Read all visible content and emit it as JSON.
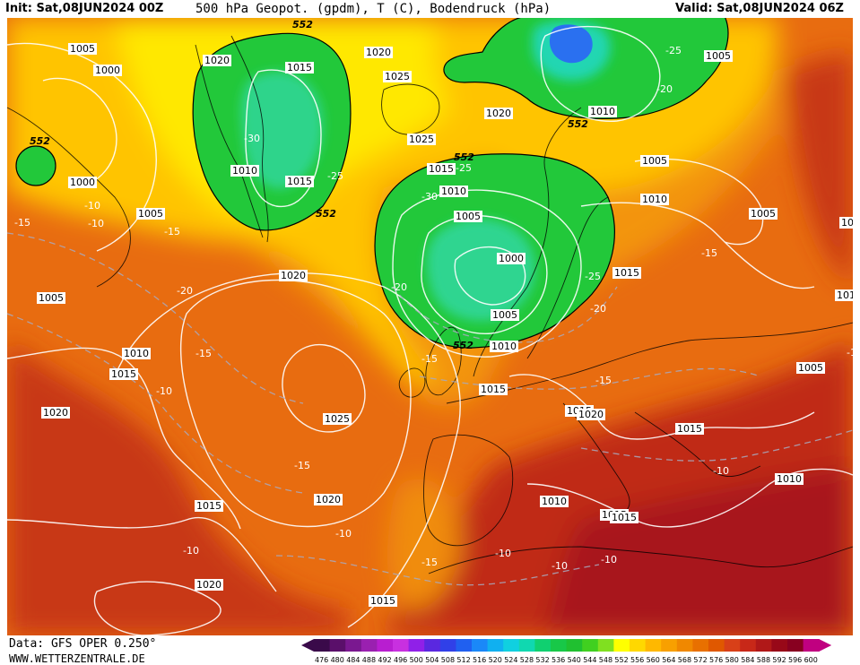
{
  "header": {
    "init": "Init: Sat,08JUN2024 00Z",
    "title": "500 hPa Geopot. (gpdm), T (C), Bodendruck (hPa)",
    "valid": "Valid: Sat,08JUN2024 06Z"
  },
  "footer": {
    "source": "Data: GFS OPER 0.250°",
    "website": "WWW.WETTERZENTRALE.DE"
  },
  "colorbar": {
    "ticks": [
      "476",
      "480",
      "484",
      "488",
      "492",
      "496",
      "500",
      "504",
      "508",
      "512",
      "516",
      "520",
      "524",
      "528",
      "532",
      "536",
      "540",
      "544",
      "548",
      "552",
      "556",
      "560",
      "564",
      "568",
      "572",
      "576",
      "580",
      "584",
      "588",
      "592",
      "596",
      "600"
    ],
    "colors": [
      "#3a0a4a",
      "#5a0f6a",
      "#7a1890",
      "#9a20b0",
      "#b81ed0",
      "#c830e0",
      "#9020e8",
      "#5a28e0",
      "#3040e8",
      "#2060f0",
      "#1a88f8",
      "#10b0f0",
      "#10d0e0",
      "#10d8b0",
      "#10d070",
      "#18c848",
      "#20c030",
      "#40d020",
      "#80e020",
      "#ffff00",
      "#ffd800",
      "#ffb800",
      "#f8a000",
      "#f08800",
      "#e87000",
      "#e05800",
      "#d84018",
      "#c82818",
      "#b01818",
      "#980818",
      "#880020",
      "#c00080"
    ]
  },
  "map": {
    "colors": {
      "red": "#c83818",
      "orange": "#e86c10",
      "lightorange": "#f39410",
      "yellow": "#ffc400",
      "paleyellow": "#ffe800",
      "green": "#22c83a",
      "cyan": "#20d8a8",
      "blue": "#2a70f0"
    },
    "isobars": [
      {
        "t": "1005"
      },
      {
        "t": "1000"
      },
      {
        "t": "1020"
      },
      {
        "t": "1015"
      },
      {
        "t": "1020"
      },
      {
        "t": "1025"
      },
      {
        "t": "1020"
      },
      {
        "t": "1025"
      },
      {
        "t": "1010"
      },
      {
        "t": "1015"
      },
      {
        "t": "1000"
      },
      {
        "t": "1005"
      },
      {
        "t": "1005"
      },
      {
        "t": "1015"
      },
      {
        "t": "1010"
      },
      {
        "t": "1005"
      },
      {
        "t": "1000"
      },
      {
        "t": "1005"
      },
      {
        "t": "1010"
      },
      {
        "t": "1020"
      },
      {
        "t": "1010"
      },
      {
        "t": "1015"
      },
      {
        "t": "1015"
      },
      {
        "t": "1025"
      },
      {
        "t": "1005"
      },
      {
        "t": "1010"
      },
      {
        "t": "1005"
      },
      {
        "t": "1010"
      },
      {
        "t": "1005"
      },
      {
        "t": "1020"
      },
      {
        "t": "1015"
      },
      {
        "t": "1020"
      },
      {
        "t": "1015"
      },
      {
        "t": "1015"
      },
      {
        "t": "1010"
      },
      {
        "t": "1015"
      },
      {
        "t": "1015"
      },
      {
        "t": "1010"
      },
      {
        "t": "1020"
      },
      {
        "t": "1015"
      },
      {
        "t": "1010"
      },
      {
        "t": "1015"
      },
      {
        "t": "1005"
      },
      {
        "t": "1010"
      },
      {
        "t": "1020"
      }
    ],
    "temperatures": [
      {
        "t": "-30"
      },
      {
        "t": "-25"
      },
      {
        "t": "-10"
      },
      {
        "t": "-15"
      },
      {
        "t": "-20"
      },
      {
        "t": "-25"
      },
      {
        "t": "-30"
      },
      {
        "t": "-20"
      },
      {
        "t": "-25"
      },
      {
        "t": "-20"
      },
      {
        "t": "-15"
      },
      {
        "t": "-15"
      },
      {
        "t": "-10"
      },
      {
        "t": "-15"
      },
      {
        "t": "-15"
      },
      {
        "t": "-10"
      },
      {
        "t": "-15"
      },
      {
        "t": "-10"
      },
      {
        "t": "-15"
      },
      {
        "t": "-10"
      },
      {
        "t": "-10"
      },
      {
        "t": "-10"
      },
      {
        "t": "-25"
      },
      {
        "t": "-20"
      },
      {
        "t": "-15"
      },
      {
        "t": "-10"
      },
      {
        "t": "-10"
      },
      {
        "t": "-10"
      }
    ],
    "geopotential": [
      {
        "t": "552"
      },
      {
        "t": "552"
      },
      {
        "t": "552"
      },
      {
        "t": "552"
      },
      {
        "t": "552"
      },
      {
        "t": "552"
      }
    ]
  }
}
